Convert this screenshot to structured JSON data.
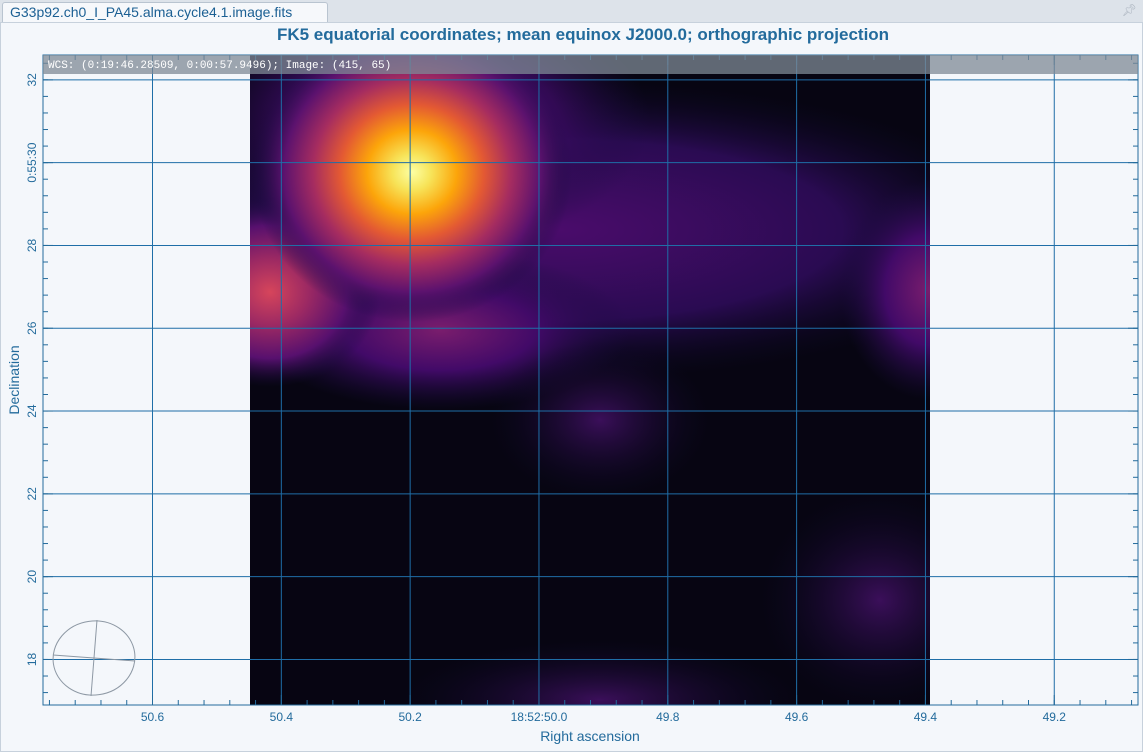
{
  "tab": {
    "label": "G33p92.ch0_I_PA45.alma.cycle4.1.image.fits"
  },
  "tab_icons": {
    "pin": "pin-icon",
    "close": "close-icon"
  },
  "plot": {
    "title": "FK5 equatorial coordinates; mean equinox J2000.0; orthographic projection",
    "xlabel": "Right ascension",
    "ylabel": "Declination",
    "cursor_info": "WCS: (0:19:46.28509, 0:00:57.9496); Image: (415, 65)",
    "x_ticks": [
      "50.6",
      "50.4",
      "50.2",
      "18:52:50.0",
      "49.8",
      "49.6",
      "49.4",
      "49.2"
    ],
    "y_ticks": [
      "32",
      "0:55:30",
      "28",
      "26",
      "24",
      "22",
      "20",
      "18"
    ],
    "colormap": "inferno",
    "grid_color": "#1f6ea7",
    "axis_color": "#236b9c",
    "beam": "beam-ellipse-icon"
  },
  "chart_data": {
    "type": "heatmap",
    "title": "FK5 equatorial coordinates; mean equinox J2000.0; orthographic projection",
    "xlabel": "Right ascension",
    "ylabel": "Declination",
    "x_tick_labels": [
      "50.6",
      "50.4",
      "50.2",
      "18:52:50.0",
      "49.8",
      "49.6",
      "49.4",
      "49.2"
    ],
    "y_tick_labels": [
      "32",
      "0:55:30",
      "28",
      "26",
      "24",
      "22",
      "20",
      "18"
    ],
    "x_tick_values_sec": [
      50.6,
      50.4,
      50.2,
      50.0,
      49.8,
      49.6,
      49.4,
      49.2
    ],
    "y_tick_values_arcsec": [
      32,
      30,
      28,
      26,
      24,
      22,
      20,
      18
    ],
    "xlim_sec": [
      50.77,
      49.07
    ],
    "ylim_arcsec": [
      16.9,
      32.6
    ],
    "image_x_extent_sec": [
      50.456,
      49.387
    ],
    "image_y_extent_arcsec": [
      16.9,
      32.2
    ],
    "grid": true,
    "sources": [
      {
        "ra_sec": 50.2,
        "dec_arcsec": 29.4,
        "relative_intensity": 1.0
      },
      {
        "ra_sec": 50.41,
        "dec_arcsec": 26.7,
        "relative_intensity": 0.45
      },
      {
        "ra_sec": 49.39,
        "dec_arcsec": 26.8,
        "relative_intensity": 0.28
      },
      {
        "ra_sec": 50.17,
        "dec_arcsec": 26.2,
        "relative_intensity": 0.25
      },
      {
        "ra_sec": 49.88,
        "dec_arcsec": 24.2,
        "relative_intensity": 0.14
      },
      {
        "ra_sec": 49.84,
        "dec_arcsec": 18.0,
        "relative_intensity": 0.09
      }
    ]
  }
}
